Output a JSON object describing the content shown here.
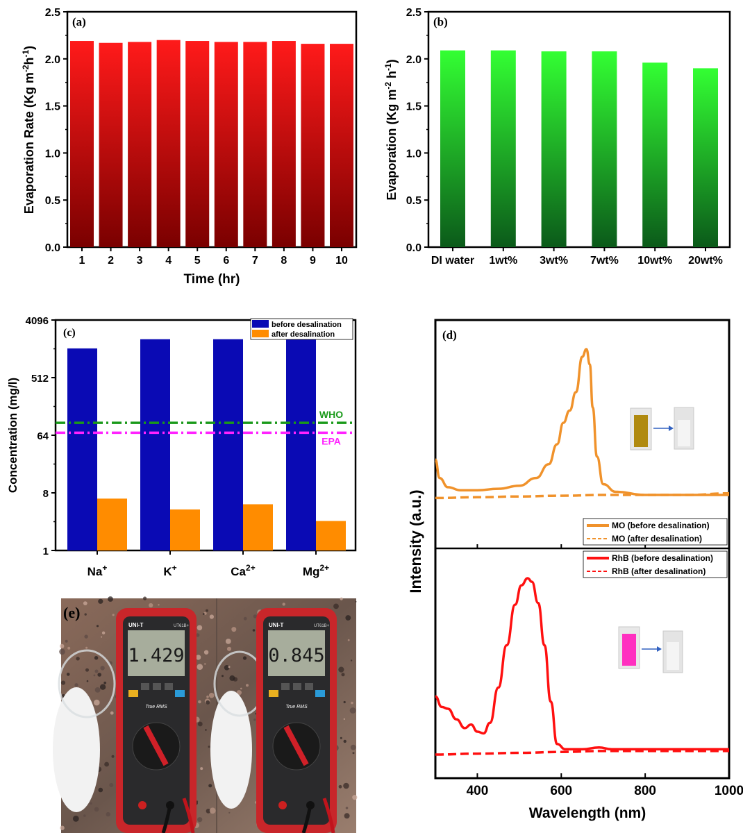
{
  "chart_data": [
    {
      "panel": "(a)",
      "type": "bar",
      "xlabel": "Time (hr)",
      "ylabel": "Evaporation Rate (Kg m",
      "ylabel_sup1": "-2",
      "ylabel_mid": "h",
      "ylabel_sup2": "-1",
      "ylabel_end": ")",
      "categories": [
        "1",
        "2",
        "3",
        "4",
        "5",
        "6",
        "7",
        "8",
        "9",
        "10"
      ],
      "values": [
        2.19,
        2.17,
        2.18,
        2.2,
        2.19,
        2.18,
        2.18,
        2.19,
        2.16,
        2.16
      ],
      "ylim": [
        0,
        2.5
      ],
      "yticks": [
        "0.0",
        "0.5",
        "1.0",
        "1.5",
        "2.0",
        "2.5"
      ],
      "bar_color_top": "#ff1a1a",
      "bar_color_bottom": "#7a0000"
    },
    {
      "panel": "(b)",
      "type": "bar",
      "xlabel": "",
      "ylabel": "Evaporation (Kg m",
      "ylabel_sup1": "-2",
      "ylabel_mid": " h",
      "ylabel_sup2": "-1",
      "ylabel_end": ")",
      "categories": [
        "DI water",
        "1wt%",
        "3wt%",
        "7wt%",
        "10wt%",
        "20wt%"
      ],
      "values": [
        2.09,
        2.09,
        2.08,
        2.08,
        1.96,
        1.9
      ],
      "ylim": [
        0,
        2.5
      ],
      "yticks": [
        "0.0",
        "0.5",
        "1.0",
        "1.5",
        "2.0",
        "2.5"
      ],
      "bar_color_top": "#33ff33",
      "bar_color_bottom": "#0b5a1a"
    },
    {
      "panel": "(c)",
      "type": "bar",
      "yscale": "log2",
      "ylabel": "Concentration (mg/l)",
      "categories": [
        "Na",
        "K",
        "Ca",
        "Mg"
      ],
      "category_sup": [
        "+",
        "+",
        "2+",
        "2+"
      ],
      "series": [
        {
          "name": "before desalination",
          "color": "#0a0ab4",
          "values": [
            1470,
            2050,
            2050,
            2150
          ]
        },
        {
          "name": "after desalination",
          "color": "#ff8c00",
          "values": [
            6.5,
            4.4,
            5.3,
            2.9
          ]
        }
      ],
      "ylim": [
        1,
        4096
      ],
      "yticks": [
        "1",
        "8",
        "64",
        "512",
        "4096"
      ],
      "ytick_values": [
        1,
        8,
        64,
        512,
        4096
      ],
      "reference_lines": [
        {
          "label": "WHO",
          "value": 100,
          "color": "#1a9a1a"
        },
        {
          "label": "EPA",
          "value": 70,
          "color": "#ff22ff"
        }
      ]
    },
    {
      "panel": "(d)",
      "type": "line",
      "xlabel": "Wavelength (nm)",
      "ylabel": "Intensity (a.u.)",
      "xlim": [
        300,
        1000
      ],
      "xticks": [
        "400",
        "600",
        "800",
        "1000"
      ],
      "xtick_values": [
        400,
        600,
        800,
        1000
      ],
      "top": {
        "series": [
          {
            "name": "MO (before desalination)",
            "color": "#f0922b",
            "dash": false,
            "x": [
              300,
              310,
              330,
              360,
              400,
              450,
              500,
              540,
              570,
              590,
              605,
              620,
              635,
              650,
              660,
              668,
              675,
              685,
              700,
              730,
              800,
              900,
              1000
            ],
            "y": [
              0.28,
              0.16,
              0.1,
              0.08,
              0.08,
              0.09,
              0.11,
              0.16,
              0.25,
              0.38,
              0.52,
              0.6,
              0.72,
              0.95,
              1.0,
              0.9,
              0.62,
              0.3,
              0.12,
              0.07,
              0.05,
              0.05,
              0.05
            ]
          },
          {
            "name": "MO (after desalination)",
            "color": "#f0922b",
            "dash": true,
            "x": [
              300,
              400,
              500,
              600,
              700,
              800,
              900,
              1000
            ],
            "y": [
              0.03,
              0.035,
              0.04,
              0.045,
              0.05,
              0.05,
              0.05,
              0.06
            ]
          }
        ]
      },
      "bottom": {
        "series": [
          {
            "name": "RhB (before desalination)",
            "color": "#ff1010",
            "dash": false,
            "x": [
              300,
              315,
              330,
              350,
              370,
              385,
              400,
              415,
              430,
              450,
              470,
              490,
              505,
              520,
              530,
              545,
              560,
              575,
              590,
              610,
              650,
              690,
              720,
              800,
              900,
              1000
            ],
            "y": [
              0.33,
              0.27,
              0.26,
              0.2,
              0.15,
              0.17,
              0.13,
              0.12,
              0.18,
              0.38,
              0.62,
              0.85,
              0.96,
              1.0,
              0.98,
              0.86,
              0.62,
              0.3,
              0.06,
              0.03,
              0.03,
              0.04,
              0.03,
              0.03,
              0.03,
              0.03
            ]
          },
          {
            "name": "RhB (after desalination)",
            "color": "#ff1010",
            "dash": true,
            "x": [
              300,
              400,
              500,
              600,
              700,
              800,
              900,
              1000
            ],
            "y": [
              0.0,
              0.005,
              0.01,
              0.015,
              0.02,
              0.02,
              0.02,
              0.02
            ]
          }
        ]
      }
    }
  ],
  "photo_panel": {
    "label": "(e)",
    "meters": [
      {
        "reading": "1.429",
        "brand": "UNI-T",
        "model": "UT61B+",
        "rms": "True RMS"
      },
      {
        "reading": "0.845",
        "brand": "UNI-T",
        "model": "UT61B+",
        "rms": "True RMS"
      }
    ],
    "cuvette_mo_color": "#b08a10",
    "cuvette_rhb_color": "#ff30c0"
  }
}
